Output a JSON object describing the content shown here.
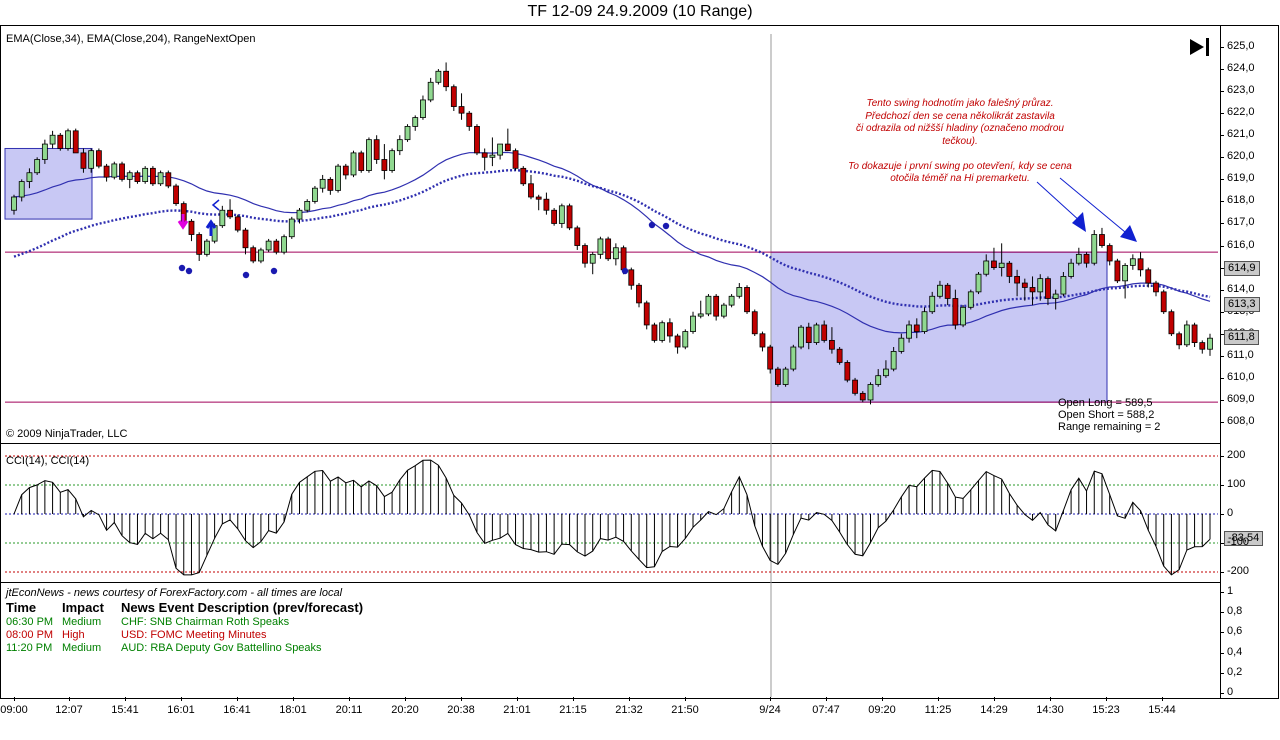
{
  "title": "TF 12-09  24.9.2009 (10 Range)",
  "price_panel": {
    "indicator_label": "EMA(Close,34), EMA(Close,204), RangeNextOpen",
    "copyright": "© 2009 NinjaTrader, LLC",
    "y_ticks": [
      "625,0",
      "624,0",
      "623,0",
      "622,0",
      "621,0",
      "620,0",
      "619,0",
      "618,0",
      "617,0",
      "616,0",
      "615,0",
      "614,0",
      "613,0",
      "612,0",
      "611,0",
      "610,0",
      "609,0",
      "608,0"
    ],
    "price_tags": {
      "ema204": "614,9",
      "ema34": "613,3",
      "last": "611,8"
    },
    "annotation": [
      "Tento swing hodnotím jako falešný průraz.",
      "Předchozí den se cena několikrát zastavila",
      "či odrazila od nižšší hladiny (označeno modrou",
      "tečkou).",
      "",
      "To dokazuje i první swing po otevření, kdy se cena",
      "otočila téměř na Hi premarketu."
    ],
    "range_info": {
      "open_long": "Open Long = 589,5",
      "open_short": "Open Short = 588,2",
      "range_remaining": "Range remaining = 2"
    }
  },
  "cci_panel": {
    "label": "CCI(14), CCI(14)",
    "y_ticks": [
      "200",
      "100",
      "0",
      "-100",
      "-200"
    ],
    "value_tag": "-83,54"
  },
  "news_panel": {
    "source": "jtEconNews - news courtesy of ForexFactory.com - all times are local",
    "headers": {
      "time": "Time",
      "impact": "Impact",
      "desc": "News Event Description (prev/forecast)"
    },
    "rows": [
      {
        "time": "06:30 PM",
        "impact": "Medium",
        "desc": "CHF: SNB Chairman Roth Speaks",
        "color": "#008000"
      },
      {
        "time": "08:00 PM",
        "impact": "High",
        "desc": "USD: FOMC Meeting Minutes",
        "color": "#c00000"
      },
      {
        "time": "11:20 PM",
        "impact": "Medium",
        "desc": "AUD: RBA Deputy Gov Battellino Speaks",
        "color": "#008000"
      }
    ],
    "y_ticks": [
      "1",
      "0,8",
      "0,6",
      "0,4",
      "0,2",
      "0"
    ]
  },
  "x_ticks": [
    "09:00",
    "12:07",
    "15:41",
    "16:01",
    "16:41",
    "18:01",
    "20:11",
    "20:20",
    "20:38",
    "21:01",
    "21:15",
    "21:32",
    "21:50",
    "9/24",
    "07:47",
    "09:20",
    "11:25",
    "14:29",
    "14:30",
    "15:23",
    "15:44"
  ],
  "colors": {
    "up": "#90d890",
    "down": "#c00000",
    "ema": "#3030b0",
    "box": "#c8c8f4",
    "level": "#a0005a",
    "arrow": "#1020d0",
    "note": "#c00000"
  },
  "chart_data": {
    "type": "candlestick",
    "title": "TF 12-09  24.9.2009 (10 Range)",
    "ylim": [
      607.5,
      625.4
    ],
    "levels": [
      615.7,
      608.9
    ],
    "ohlc": [
      [
        617.6,
        618.3,
        617.4,
        618.2
      ],
      [
        618.2,
        619.0,
        618.0,
        618.9
      ],
      [
        618.9,
        619.5,
        618.6,
        619.3
      ],
      [
        619.3,
        620.0,
        619.2,
        619.9
      ],
      [
        619.9,
        620.8,
        619.7,
        620.6
      ],
      [
        620.6,
        621.2,
        620.4,
        621.0
      ],
      [
        621.0,
        621.1,
        620.3,
        620.4
      ],
      [
        620.4,
        621.3,
        620.3,
        621.2
      ],
      [
        621.2,
        621.3,
        620.2,
        620.2
      ],
      [
        620.2,
        620.4,
        619.3,
        619.5
      ],
      [
        619.5,
        620.4,
        619.3,
        620.3
      ],
      [
        620.3,
        620.4,
        619.5,
        619.6
      ],
      [
        619.6,
        619.7,
        618.9,
        619.1
      ],
      [
        619.1,
        619.8,
        619.0,
        619.7
      ],
      [
        619.7,
        619.8,
        618.9,
        619.0
      ],
      [
        619.0,
        619.4,
        618.6,
        619.3
      ],
      [
        619.3,
        619.4,
        618.8,
        618.9
      ],
      [
        618.9,
        619.6,
        618.8,
        619.5
      ],
      [
        619.5,
        619.6,
        618.7,
        618.8
      ],
      [
        618.8,
        619.4,
        618.7,
        619.3
      ],
      [
        619.3,
        619.4,
        618.6,
        618.7
      ],
      [
        618.7,
        618.8,
        617.8,
        617.9
      ],
      [
        617.9,
        618.0,
        617.0,
        617.1
      ],
      [
        617.1,
        617.2,
        616.2,
        616.5
      ],
      [
        616.5,
        616.6,
        615.3,
        615.6
      ],
      [
        615.6,
        616.3,
        615.5,
        616.2
      ],
      [
        616.2,
        617.0,
        616.1,
        616.9
      ],
      [
        616.9,
        617.8,
        616.8,
        617.6
      ],
      [
        617.6,
        618.1,
        617.2,
        617.3
      ],
      [
        617.3,
        617.4,
        616.6,
        616.7
      ],
      [
        616.7,
        616.8,
        615.6,
        615.9
      ],
      [
        615.9,
        616.0,
        615.2,
        615.3
      ],
      [
        615.3,
        615.9,
        615.2,
        615.8
      ],
      [
        615.8,
        616.3,
        615.7,
        616.2
      ],
      [
        616.2,
        616.3,
        615.6,
        615.7
      ],
      [
        615.7,
        616.5,
        615.6,
        616.4
      ],
      [
        616.4,
        617.3,
        616.3,
        617.2
      ],
      [
        617.2,
        617.7,
        617.0,
        617.6
      ],
      [
        617.6,
        618.1,
        617.5,
        618.0
      ],
      [
        618.0,
        618.7,
        617.9,
        618.6
      ],
      [
        618.6,
        619.2,
        618.4,
        619.0
      ],
      [
        619.0,
        619.1,
        618.3,
        618.5
      ],
      [
        618.5,
        619.7,
        618.4,
        619.6
      ],
      [
        619.6,
        619.7,
        619.0,
        619.2
      ],
      [
        619.2,
        620.3,
        619.1,
        620.2
      ],
      [
        620.2,
        620.3,
        619.3,
        619.4
      ],
      [
        619.4,
        620.9,
        619.3,
        620.8
      ],
      [
        620.8,
        621.0,
        619.7,
        619.9
      ],
      [
        619.9,
        620.6,
        619.0,
        619.4
      ],
      [
        619.4,
        620.4,
        619.3,
        620.3
      ],
      [
        620.3,
        621.0,
        620.1,
        620.8
      ],
      [
        620.8,
        621.5,
        620.7,
        621.4
      ],
      [
        621.4,
        621.9,
        621.2,
        621.8
      ],
      [
        621.8,
        622.8,
        621.7,
        622.6
      ],
      [
        622.6,
        623.6,
        622.5,
        623.4
      ],
      [
        623.4,
        624.0,
        623.3,
        623.9
      ],
      [
        623.9,
        624.3,
        623.0,
        623.2
      ],
      [
        623.2,
        623.3,
        622.1,
        622.3
      ],
      [
        622.3,
        622.9,
        621.7,
        622.0
      ],
      [
        622.0,
        622.1,
        621.2,
        621.4
      ],
      [
        621.4,
        621.5,
        620.1,
        620.2
      ],
      [
        620.2,
        620.4,
        619.4,
        620.0
      ],
      [
        620.0,
        620.9,
        619.6,
        620.1
      ],
      [
        620.1,
        620.6,
        619.9,
        620.6
      ],
      [
        620.6,
        621.3,
        620.3,
        620.3
      ],
      [
        620.3,
        620.4,
        619.4,
        619.5
      ],
      [
        619.5,
        619.6,
        618.7,
        618.8
      ],
      [
        618.8,
        619.2,
        618.1,
        618.2
      ],
      [
        618.2,
        618.3,
        617.6,
        618.1
      ],
      [
        618.1,
        618.4,
        617.4,
        617.6
      ],
      [
        617.6,
        617.7,
        616.9,
        617.0
      ],
      [
        617.0,
        617.9,
        616.8,
        617.8
      ],
      [
        617.8,
        617.9,
        616.7,
        616.8
      ],
      [
        616.8,
        616.9,
        615.8,
        616.0
      ],
      [
        616.0,
        616.1,
        615.0,
        615.2
      ],
      [
        615.2,
        615.7,
        614.7,
        615.6
      ],
      [
        615.6,
        616.4,
        615.4,
        616.3
      ],
      [
        616.3,
        616.4,
        615.3,
        615.4
      ],
      [
        615.4,
        616.1,
        615.1,
        615.9
      ],
      [
        615.9,
        616.0,
        614.7,
        614.9
      ],
      [
        614.9,
        615.0,
        614.0,
        614.2
      ],
      [
        614.2,
        614.3,
        613.2,
        613.4
      ],
      [
        613.4,
        613.5,
        612.2,
        612.4
      ],
      [
        612.4,
        612.5,
        611.6,
        611.7
      ],
      [
        611.7,
        612.6,
        611.6,
        612.5
      ],
      [
        612.5,
        612.7,
        611.6,
        611.9
      ],
      [
        611.9,
        612.0,
        611.1,
        611.4
      ],
      [
        611.4,
        612.2,
        611.3,
        612.1
      ],
      [
        612.1,
        613.0,
        612.0,
        612.8
      ],
      [
        612.8,
        613.5,
        612.7,
        612.9
      ],
      [
        612.9,
        613.8,
        612.8,
        613.7
      ],
      [
        613.7,
        613.8,
        612.6,
        612.8
      ],
      [
        612.8,
        613.4,
        612.7,
        613.3
      ],
      [
        613.3,
        613.8,
        613.2,
        613.7
      ],
      [
        613.7,
        614.3,
        613.6,
        614.1
      ],
      [
        614.1,
        614.2,
        612.9,
        613.0
      ],
      [
        613.0,
        613.1,
        611.9,
        612.0
      ],
      [
        612.0,
        612.1,
        611.2,
        611.4
      ],
      [
        611.4,
        611.5,
        610.2,
        610.4
      ],
      [
        610.4,
        610.5,
        609.6,
        609.7
      ],
      [
        609.7,
        610.5,
        609.6,
        610.4
      ],
      [
        610.4,
        611.5,
        610.3,
        611.4
      ],
      [
        611.4,
        612.4,
        611.3,
        612.3
      ],
      [
        612.3,
        612.5,
        611.3,
        611.6
      ],
      [
        611.6,
        612.5,
        611.5,
        612.4
      ],
      [
        612.4,
        612.6,
        611.6,
        611.7
      ],
      [
        611.7,
        612.3,
        611.1,
        611.3
      ],
      [
        611.3,
        611.4,
        610.6,
        610.7
      ],
      [
        610.7,
        610.8,
        609.8,
        609.9
      ],
      [
        609.9,
        610.0,
        609.2,
        609.3
      ],
      [
        609.3,
        609.4,
        608.9,
        609.0
      ],
      [
        609.0,
        609.8,
        608.8,
        609.7
      ],
      [
        609.7,
        610.4,
        609.6,
        610.1
      ],
      [
        610.1,
        610.8,
        610.0,
        610.4
      ],
      [
        610.4,
        611.4,
        610.3,
        611.2
      ],
      [
        611.2,
        612.0,
        611.1,
        611.8
      ],
      [
        611.8,
        612.6,
        611.6,
        612.4
      ],
      [
        612.4,
        612.7,
        611.8,
        612.1
      ],
      [
        612.1,
        613.2,
        612.0,
        613.0
      ],
      [
        613.0,
        613.9,
        612.9,
        613.7
      ],
      [
        613.7,
        614.4,
        613.6,
        614.2
      ],
      [
        614.2,
        614.3,
        613.3,
        613.6
      ],
      [
        613.6,
        614.0,
        612.2,
        612.4
      ],
      [
        612.4,
        613.3,
        612.3,
        613.2
      ],
      [
        613.2,
        614.0,
        613.1,
        613.9
      ],
      [
        613.9,
        614.8,
        613.8,
        614.7
      ],
      [
        614.7,
        615.6,
        614.6,
        615.3
      ],
      [
        615.3,
        615.9,
        614.9,
        615.0
      ],
      [
        615.0,
        616.1,
        614.6,
        615.2
      ],
      [
        615.2,
        615.3,
        614.3,
        614.6
      ],
      [
        614.6,
        614.9,
        613.7,
        614.3
      ],
      [
        614.3,
        614.5,
        613.5,
        614.1
      ],
      [
        614.1,
        614.6,
        613.3,
        613.9
      ],
      [
        613.9,
        614.7,
        613.5,
        614.5
      ],
      [
        614.5,
        614.6,
        613.3,
        613.6
      ],
      [
        613.6,
        614.0,
        613.1,
        613.8
      ],
      [
        613.8,
        614.8,
        613.7,
        614.6
      ],
      [
        614.6,
        615.4,
        614.5,
        615.2
      ],
      [
        615.2,
        615.9,
        615.1,
        615.6
      ],
      [
        615.6,
        615.7,
        615.0,
        615.2
      ],
      [
        615.2,
        616.7,
        615.1,
        616.5
      ],
      [
        616.5,
        616.8,
        615.9,
        616.0
      ],
      [
        616.0,
        616.1,
        615.1,
        615.3
      ],
      [
        615.3,
        615.4,
        614.3,
        614.4
      ],
      [
        614.4,
        615.2,
        613.6,
        615.1
      ],
      [
        615.1,
        615.6,
        614.9,
        615.4
      ],
      [
        615.4,
        615.7,
        614.6,
        614.9
      ],
      [
        614.9,
        615.0,
        614.1,
        614.3
      ],
      [
        614.3,
        614.4,
        613.7,
        613.9
      ],
      [
        613.9,
        614.0,
        612.9,
        613.0
      ],
      [
        613.0,
        613.1,
        611.9,
        612.0
      ],
      [
        612.0,
        612.1,
        611.3,
        611.5
      ],
      [
        611.5,
        612.6,
        611.4,
        612.4
      ],
      [
        612.4,
        612.5,
        611.4,
        611.6
      ],
      [
        611.6,
        611.7,
        611.1,
        611.3
      ],
      [
        611.3,
        612.0,
        611.0,
        611.8
      ]
    ]
  }
}
